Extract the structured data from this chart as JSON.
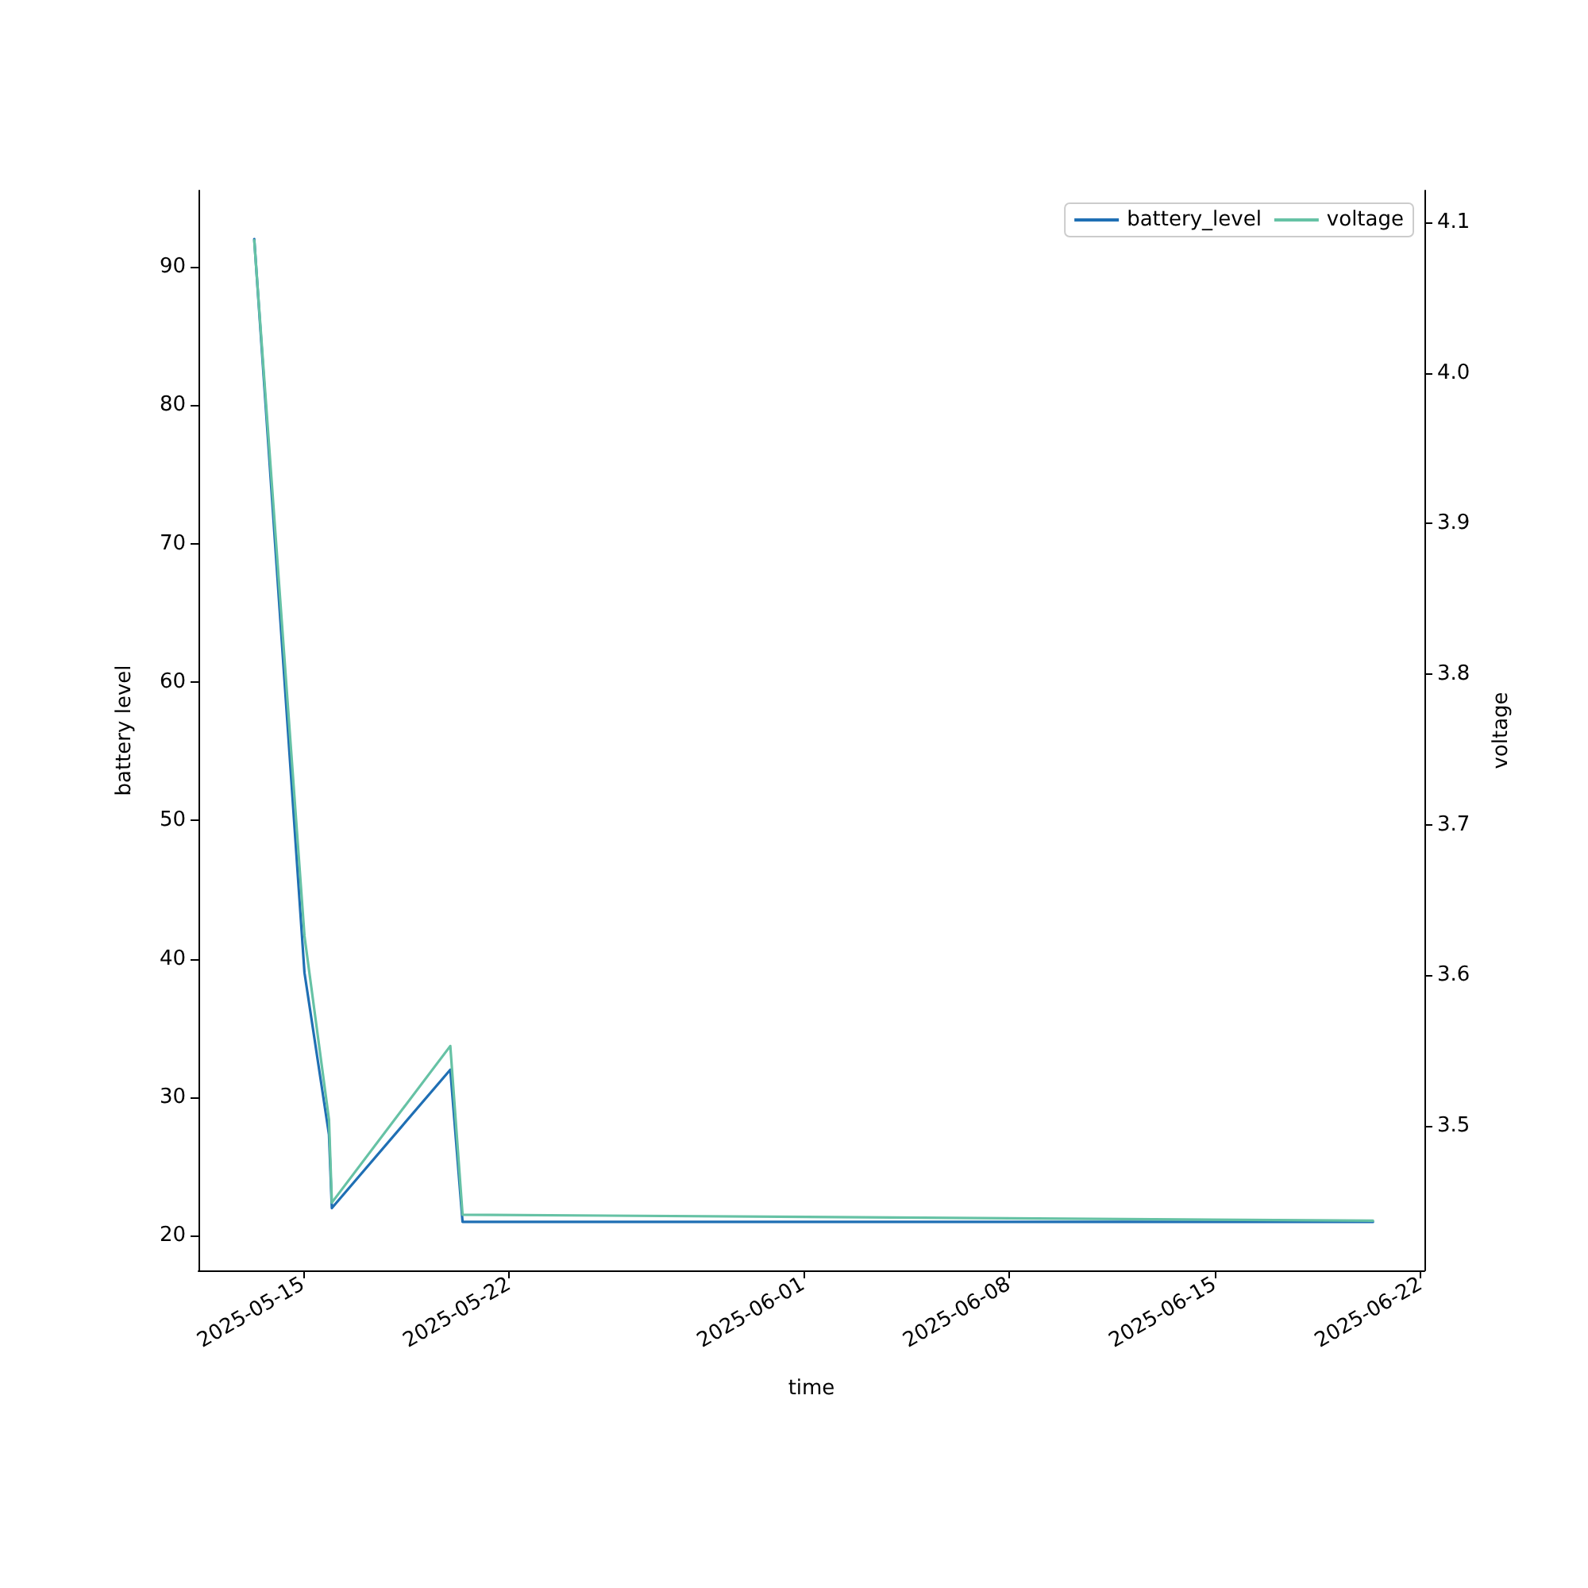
{
  "chart_data": {
    "type": "line",
    "xlabel": "time",
    "ylabel": "battery level",
    "y2label": "voltage",
    "x": [
      "2025-05-13T08:00",
      "2025-05-15T01:00",
      "2025-05-15T21:00",
      "2025-05-15T23:20",
      "2025-05-20T00:00",
      "2025-05-20T10:00",
      "2025-06-20T09:00"
    ],
    "series": [
      {
        "name": "battery_level",
        "color": "#1f6fb4",
        "values": [
          92,
          39,
          27.3,
          22,
          32,
          21,
          21
        ]
      },
      {
        "name": "voltage",
        "color": "#66c2a5",
        "axis": "y2",
        "values": [
          4.088,
          3.626,
          3.504,
          3.449,
          3.553,
          3.441,
          3.437
        ]
      }
    ],
    "xlim": [
      "2025-05-11T10:30",
      "2025-06-22T03:00"
    ],
    "xticks": [
      "2025-05-15",
      "2025-05-22",
      "2025-06-01",
      "2025-06-08",
      "2025-06-15",
      "2025-06-22"
    ],
    "ylim": [
      17.5,
      95.5
    ],
    "yticks": [
      20,
      30,
      40,
      50,
      60,
      70,
      80,
      90
    ],
    "y2lim": [
      3.404,
      4.121
    ],
    "y2ticks": [
      3.5,
      3.6,
      3.7,
      3.8,
      3.9,
      {
        "value": 4.0,
        "label": "4.0"
      },
      4.1
    ],
    "grid": false,
    "legend": "top right",
    "marker": "none",
    "line_style": "solid"
  }
}
